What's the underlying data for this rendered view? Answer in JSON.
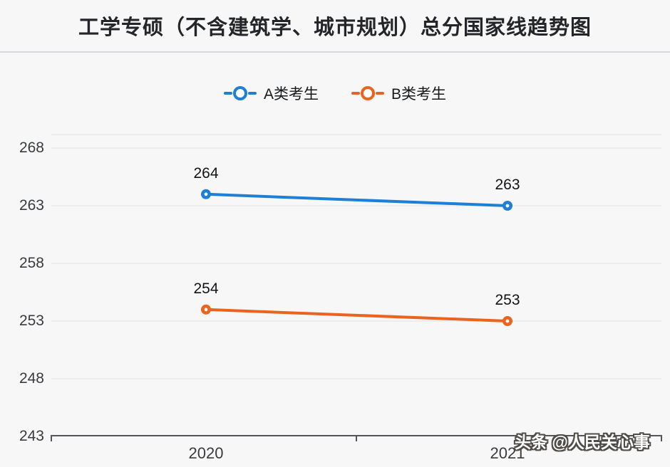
{
  "header": {
    "title": "工学专硕（不含建筑学、城市规划）总分国家线趋势图"
  },
  "watermark": "头条 @人民关心事",
  "chart_data": {
    "type": "line",
    "categories": [
      "2020",
      "2021"
    ],
    "series": [
      {
        "name": "A类考生",
        "values": [
          264,
          263
        ],
        "color": "#1e7fd6"
      },
      {
        "name": "B类考生",
        "values": [
          254,
          253
        ],
        "color": "#ea6420"
      }
    ],
    "yticks": [
      268,
      263,
      258,
      253,
      248,
      243
    ],
    "ylim": [
      243,
      269
    ],
    "grid": true,
    "legend_position": "top",
    "data_labels": true,
    "marker": "ring-circle"
  }
}
